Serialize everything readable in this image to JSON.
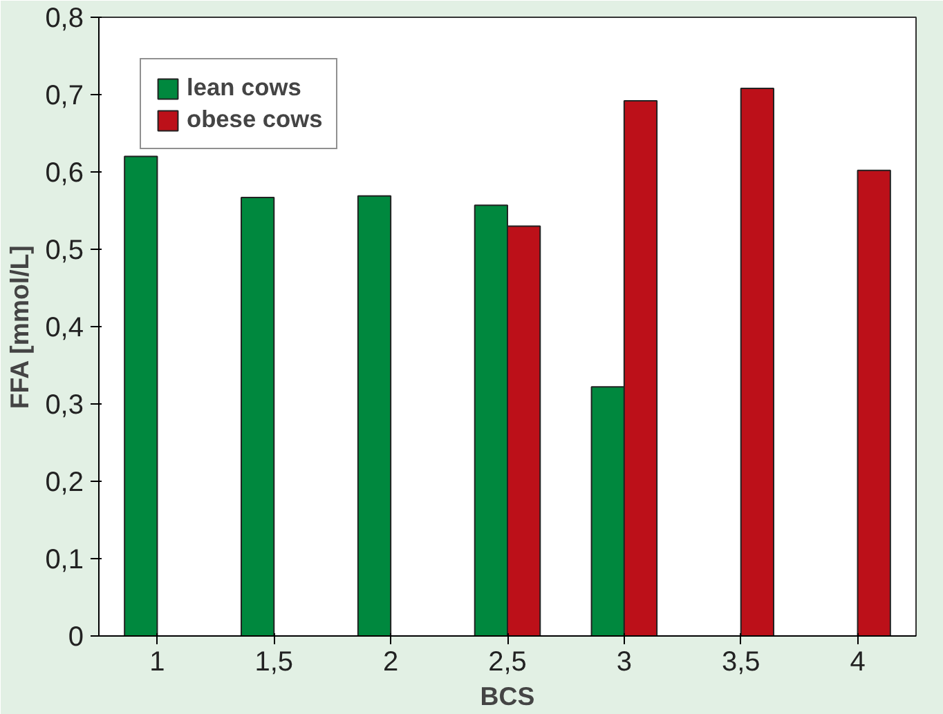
{
  "chart_data": {
    "type": "bar",
    "xlabel": "BCS",
    "ylabel": "FFA [mmol/L]",
    "categories": [
      "1",
      "1,5",
      "2",
      "2,5",
      "3",
      "3,5",
      "4"
    ],
    "series": [
      {
        "name": "lean cows",
        "color": "#00883e",
        "values": [
          0.62,
          0.567,
          0.569,
          0.557,
          0.322,
          null,
          null
        ]
      },
      {
        "name": "obese cows",
        "color": "#bc1019",
        "values": [
          null,
          null,
          null,
          0.53,
          0.692,
          0.708,
          0.602
        ]
      }
    ],
    "ylim": [
      0,
      0.8
    ],
    "yticks": [
      {
        "value": 0,
        "label": "0"
      },
      {
        "value": 0.1,
        "label": "0,1"
      },
      {
        "value": 0.2,
        "label": "0,2"
      },
      {
        "value": 0.3,
        "label": "0,3"
      },
      {
        "value": 0.4,
        "label": "0,4"
      },
      {
        "value": 0.5,
        "label": "0,5"
      },
      {
        "value": 0.6,
        "label": "0,6"
      },
      {
        "value": 0.7,
        "label": "0,7"
      },
      {
        "value": 0.8,
        "label": "0,8"
      }
    ],
    "grid": false,
    "legend": "top left"
  }
}
